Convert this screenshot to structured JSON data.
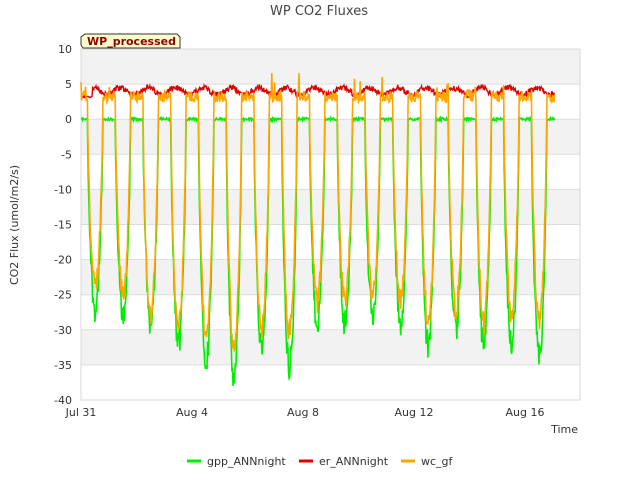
{
  "chart_data": {
    "type": "line",
    "title": "WP CO2 Fluxes",
    "badge": "WP_processed",
    "xlabel": "Time",
    "ylabel": "CO2 Flux (umol/m2/s)",
    "ylim": [
      -40,
      10
    ],
    "yticks": [
      10,
      5,
      0,
      -5,
      -10,
      -15,
      -20,
      -25,
      -30,
      -35,
      -40
    ],
    "xlim_days": [
      0,
      18
    ],
    "xticks": [
      {
        "day": 0,
        "label": "Jul 31"
      },
      {
        "day": 4,
        "label": "Aug 4"
      },
      {
        "day": 8,
        "label": "Aug 8"
      },
      {
        "day": 12,
        "label": "Aug 12"
      },
      {
        "day": 16,
        "label": "Aug 16"
      }
    ],
    "legend_position": "bottom",
    "daily_minima": {
      "days": [
        0,
        1,
        2,
        3,
        4,
        5,
        6,
        7,
        8,
        9,
        10,
        11,
        12,
        13,
        14,
        15,
        16,
        17
      ],
      "gpp_ANNnight": [
        -27,
        -28,
        -29,
        -32,
        -34,
        -37,
        -33,
        -35,
        -29,
        -29,
        -28,
        -29,
        -32,
        -30,
        -32,
        -32,
        -34,
        -35
      ],
      "wc_gf": [
        -24,
        -25,
        -28,
        -30,
        -31,
        -33,
        -30,
        -30,
        -26,
        -26,
        -25,
        -26,
        -29,
        -27,
        -29,
        -28,
        -29,
        -30
      ]
    },
    "series": [
      {
        "name": "gpp_ANNnight",
        "color": "#00ee00",
        "night_level": 0,
        "approx_range": [
          -39,
          2
        ]
      },
      {
        "name": "er_ANNnight",
        "color": "#dd0000",
        "approx_range": [
          2.5,
          5.5
        ]
      },
      {
        "name": "wc_gf",
        "color": "#ffa500",
        "approx_range": [
          -35,
          7
        ]
      }
    ]
  }
}
